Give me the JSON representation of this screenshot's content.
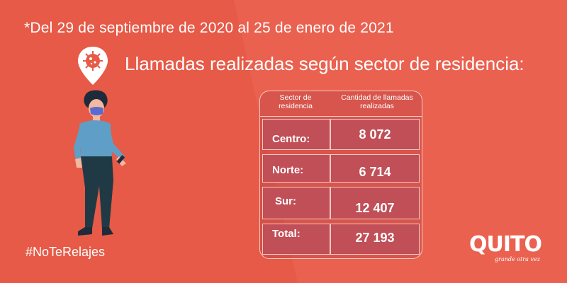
{
  "header": {
    "date_range": "*Del 29 de septiembre de 2020 al 25 de enero de 2021",
    "title": "Llamadas realizadas según sector de residencia:"
  },
  "table": {
    "col_headers": [
      "Sector de residencia",
      "Cantidad de llamadas realizadas"
    ],
    "rows": [
      {
        "sector": "Centro:",
        "value": "8 072"
      },
      {
        "sector": "Norte:",
        "value": "6 714"
      },
      {
        "sector": "Sur:",
        "value": "12 407"
      },
      {
        "sector": "Total:",
        "value": "27 193"
      }
    ]
  },
  "footer": {
    "hashtag": "#NoTeRelajes",
    "logo_text": "QUITO",
    "logo_tagline": "grande otra vez"
  },
  "colors": {
    "background": "#e65a47",
    "panel": "#c14f58",
    "line": "#f6c9c1"
  },
  "icons": [
    "location-pin-icon",
    "virus-icon"
  ]
}
